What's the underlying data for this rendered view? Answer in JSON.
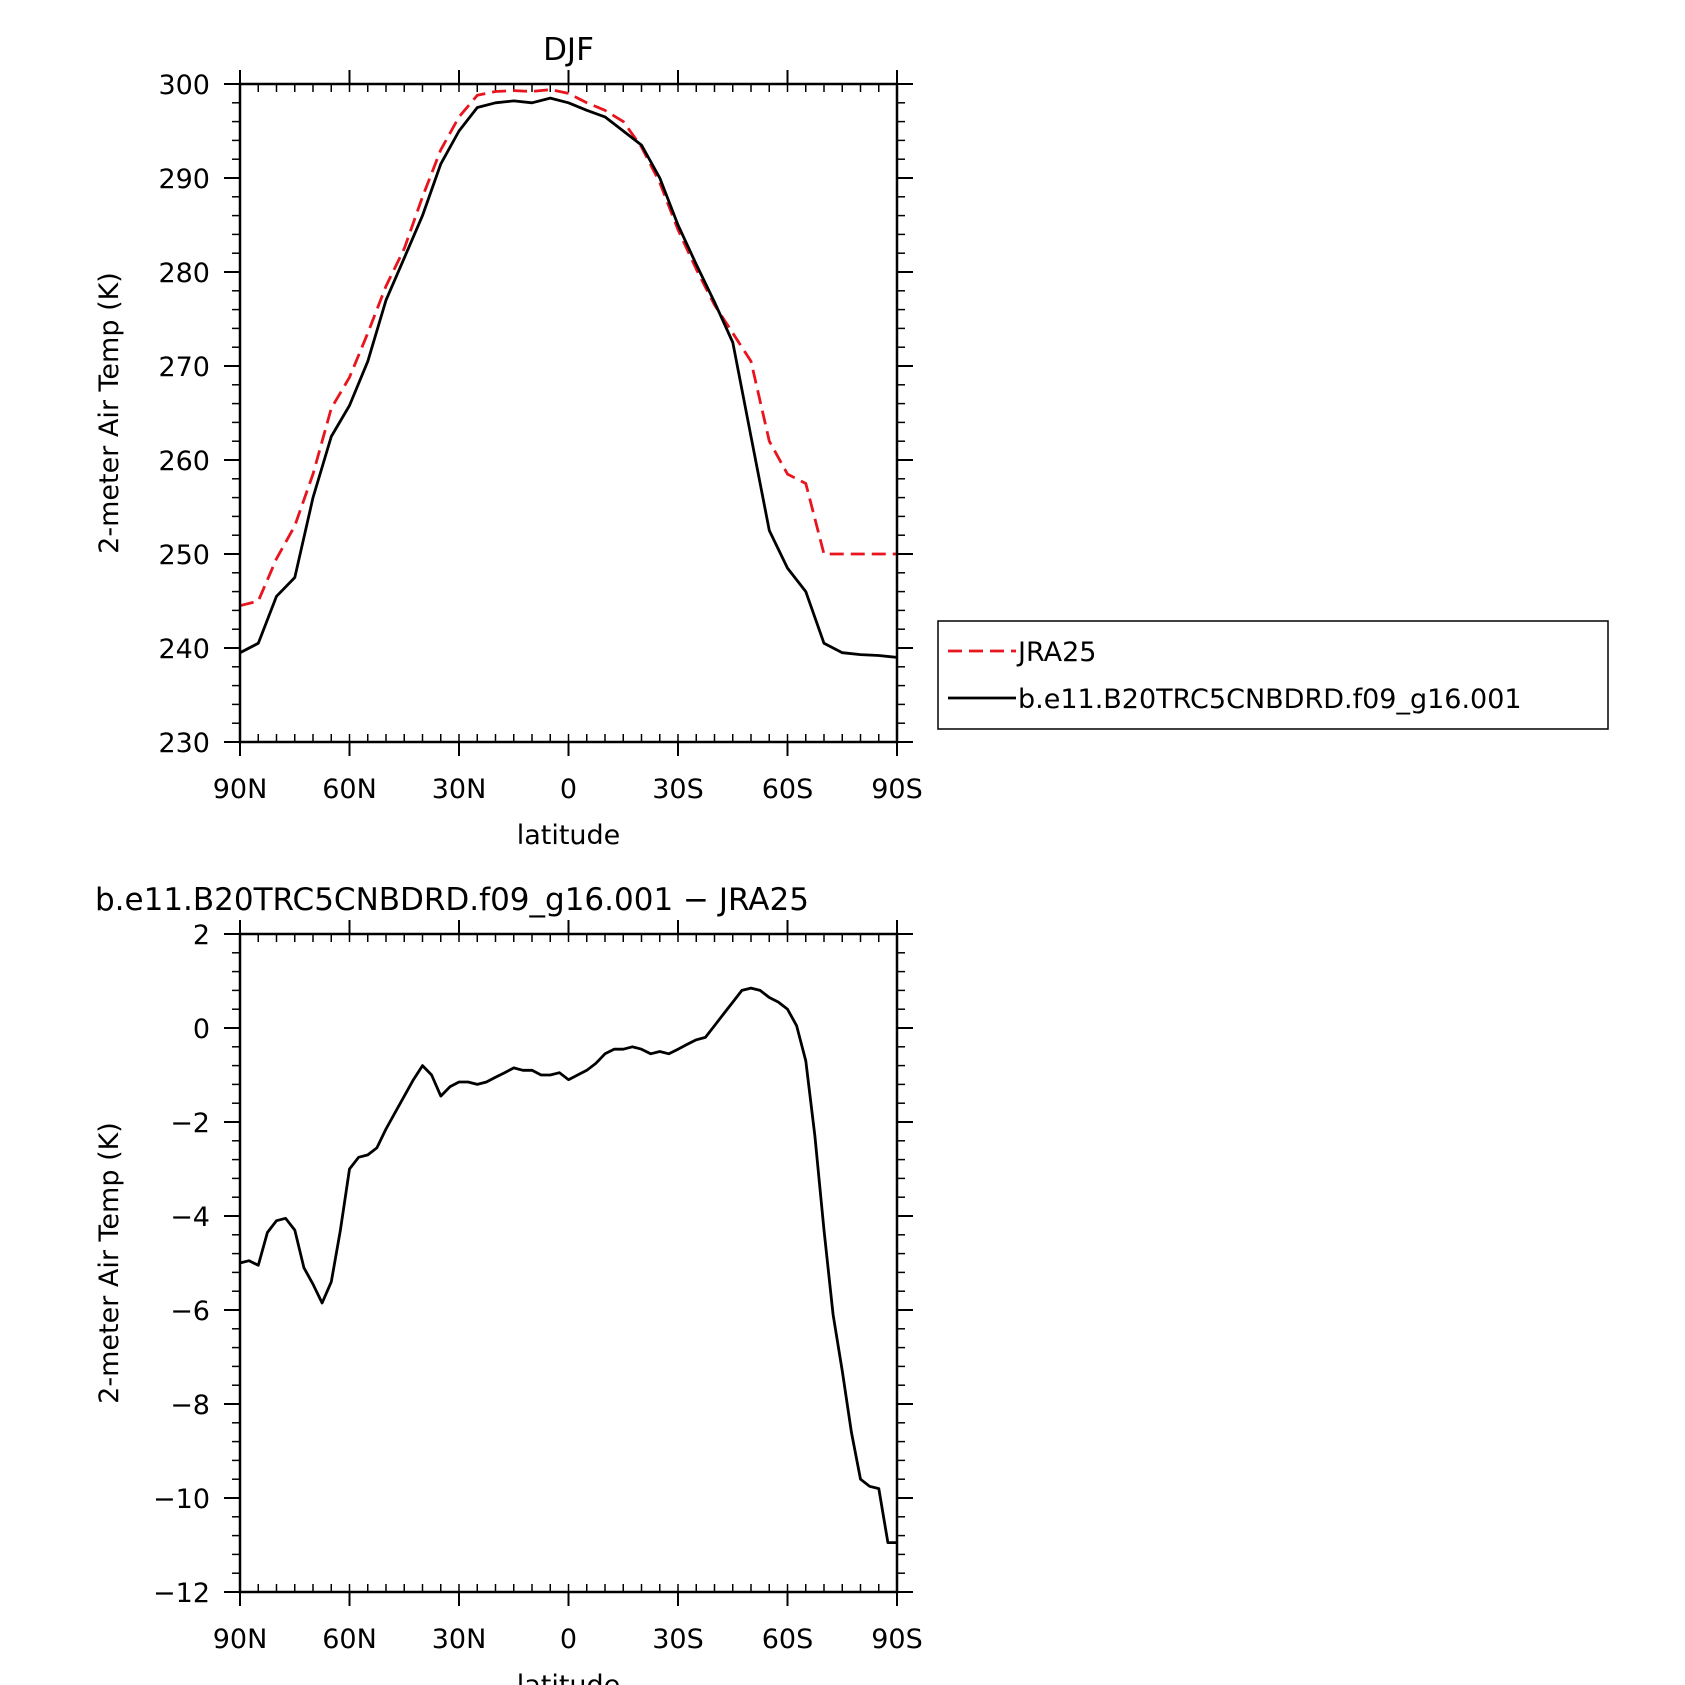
{
  "chart_data": [
    {
      "type": "line",
      "title": "DJF",
      "xlabel": "latitude",
      "ylabel": "2-meter Air Temp (K)",
      "xlim": [
        90,
        -90
      ],
      "ylim": [
        230,
        300
      ],
      "x_ticks": [
        90,
        60,
        30,
        0,
        -30,
        -60,
        -90
      ],
      "x_tick_labels": [
        "90N",
        "60N",
        "30N",
        "0",
        "30S",
        "60S",
        "90S"
      ],
      "y_ticks": [
        230,
        240,
        250,
        260,
        270,
        280,
        290,
        300
      ],
      "y_tick_labels": [
        "230",
        "240",
        "250",
        "260",
        "270",
        "280",
        "290",
        "300"
      ],
      "legend": {
        "placement": "right",
        "entries": [
          "JRA25",
          "b.e11.B20TRC5CNBDRD.f09_g16.001"
        ]
      },
      "series": [
        {
          "name": "JRA25",
          "color": "#e8141e",
          "dash": "dashed",
          "x": [
            90,
            85,
            80,
            75,
            70,
            65,
            60,
            55,
            50,
            45,
            40,
            35,
            30,
            25,
            20,
            15,
            10,
            5,
            0,
            -5,
            -10,
            -15,
            -20,
            -25,
            -30,
            -35,
            -40,
            -45,
            -50,
            -55,
            -60,
            -65,
            -70,
            -75,
            -80,
            -85,
            -90
          ],
          "y": [
            244.5,
            245.0,
            249.5,
            253.0,
            258.5,
            265.5,
            268.8,
            273.5,
            278.5,
            282.5,
            288.0,
            293.0,
            296.5,
            298.8,
            299.2,
            299.3,
            299.2,
            299.4,
            299.0,
            298.0,
            297.2,
            296.0,
            293.3,
            289.5,
            284.5,
            280.3,
            276.5,
            273.5,
            270.5,
            262.0,
            258.5,
            257.5,
            250.0,
            250.0,
            250.0,
            250.0,
            250.0
          ]
        },
        {
          "name": "b.e11.B20TRC5CNBDRD.f09_g16.001",
          "color": "#000000",
          "dash": "solid",
          "x": [
            90,
            85,
            80,
            75,
            70,
            65,
            60,
            55,
            50,
            45,
            40,
            35,
            30,
            25,
            20,
            15,
            10,
            5,
            0,
            -5,
            -10,
            -15,
            -20,
            -25,
            -30,
            -35,
            -40,
            -45,
            -50,
            -55,
            -60,
            -65,
            -70,
            -75,
            -80,
            -85,
            -90
          ],
          "y": [
            239.5,
            240.5,
            245.5,
            247.5,
            256.0,
            262.5,
            265.8,
            270.5,
            277.0,
            281.5,
            286.0,
            291.5,
            295.0,
            297.5,
            298.0,
            298.2,
            298.0,
            298.5,
            298.0,
            297.2,
            296.5,
            295.0,
            293.5,
            290.0,
            285.0,
            280.8,
            276.8,
            272.5,
            262.5,
            252.5,
            248.5,
            246.0,
            240.5,
            239.5,
            239.3,
            239.2,
            239.0
          ]
        }
      ]
    },
    {
      "type": "line",
      "title": "b.e11.B20TRC5CNBDRD.f09_g16.001 − JRA25",
      "xlabel": "latitude",
      "ylabel": "2-meter Air Temp (K)",
      "xlim": [
        90,
        -90
      ],
      "ylim": [
        -12,
        2
      ],
      "x_ticks": [
        90,
        60,
        30,
        0,
        -30,
        -60,
        -90
      ],
      "x_tick_labels": [
        "90N",
        "60N",
        "30N",
        "0",
        "30S",
        "60S",
        "90S"
      ],
      "y_ticks": [
        -12,
        -10,
        -8,
        -6,
        -4,
        -2,
        0,
        2
      ],
      "y_tick_labels": [
        "−12",
        "−10",
        "−8",
        "−6",
        "−4",
        "−2",
        "0",
        "2"
      ],
      "series": [
        {
          "color": "#000000",
          "dash": "solid",
          "x": [
            90,
            87.5,
            85,
            82.5,
            80,
            77.5,
            75,
            72.5,
            70,
            67.5,
            65,
            62.5,
            60,
            57.5,
            55,
            52.5,
            50,
            47.5,
            45,
            42.5,
            40,
            37.5,
            35,
            32.5,
            30,
            27.5,
            25,
            22.5,
            20,
            17.5,
            15,
            12.5,
            10,
            7.5,
            5,
            2.5,
            0,
            -2.5,
            -5,
            -7.5,
            -10,
            -12.5,
            -15,
            -17.5,
            -20,
            -22.5,
            -25,
            -27.5,
            -30,
            -32.5,
            -35,
            -37.5,
            -40,
            -42.5,
            -45,
            -47.5,
            -50,
            -52.5,
            -55,
            -57.5,
            -60,
            -62.5,
            -65,
            -67.5,
            -70,
            -72.5,
            -75,
            -77.5,
            -80,
            -82.5,
            -85,
            -87.5,
            -90
          ],
          "y": [
            -5.0,
            -4.95,
            -5.05,
            -4.35,
            -4.1,
            -4.05,
            -4.3,
            -5.1,
            -5.45,
            -5.85,
            -5.4,
            -4.3,
            -3.0,
            -2.75,
            -2.7,
            -2.55,
            -2.15,
            -1.8,
            -1.45,
            -1.1,
            -0.8,
            -1.0,
            -1.45,
            -1.25,
            -1.15,
            -1.15,
            -1.2,
            -1.15,
            -1.05,
            -0.95,
            -0.85,
            -0.9,
            -0.9,
            -1.0,
            -1.0,
            -0.95,
            -1.1,
            -1.0,
            -0.9,
            -0.75,
            -0.55,
            -0.45,
            -0.45,
            -0.4,
            -0.45,
            -0.55,
            -0.5,
            -0.55,
            -0.45,
            -0.35,
            -0.25,
            -0.2,
            0.05,
            0.3,
            0.55,
            0.8,
            0.85,
            0.8,
            0.65,
            0.55,
            0.4,
            0.05,
            -0.7,
            -2.3,
            -4.3,
            -6.1,
            -7.3,
            -8.6,
            -9.6,
            -9.75,
            -9.8,
            -10.95,
            -10.95
          ]
        }
      ]
    }
  ]
}
